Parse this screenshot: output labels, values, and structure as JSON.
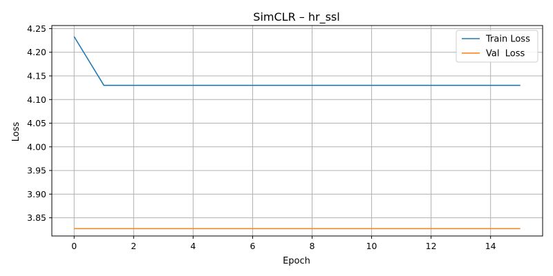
{
  "chart_data": {
    "type": "line",
    "title": "SimCLR – hr_ssl",
    "xlabel": "Epoch",
    "ylabel": "Loss",
    "xlim": [
      -0.75,
      15.75
    ],
    "ylim": [
      3.8115,
      4.2565
    ],
    "xticks": [
      0,
      2,
      4,
      6,
      8,
      10,
      12,
      14
    ],
    "yticks": [
      3.85,
      3.9,
      3.95,
      4.0,
      4.05,
      4.1,
      4.15,
      4.2,
      4.25
    ],
    "grid": true,
    "legend_position": "top-right",
    "x": [
      0,
      1,
      2,
      3,
      4,
      5,
      6,
      7,
      8,
      9,
      10,
      11,
      12,
      13,
      14,
      15
    ],
    "series": [
      {
        "name": "Train Loss",
        "color": "#1f77b4",
        "values": [
          4.233,
          4.13,
          4.13,
          4.13,
          4.13,
          4.13,
          4.13,
          4.13,
          4.13,
          4.13,
          4.13,
          4.13,
          4.13,
          4.13,
          4.13,
          4.13
        ]
      },
      {
        "name": "Val  Loss",
        "color": "#ff7f0e",
        "values": [
          3.827,
          3.827,
          3.827,
          3.827,
          3.827,
          3.827,
          3.827,
          3.827,
          3.827,
          3.827,
          3.827,
          3.827,
          3.827,
          3.827,
          3.827,
          3.827
        ]
      }
    ]
  }
}
